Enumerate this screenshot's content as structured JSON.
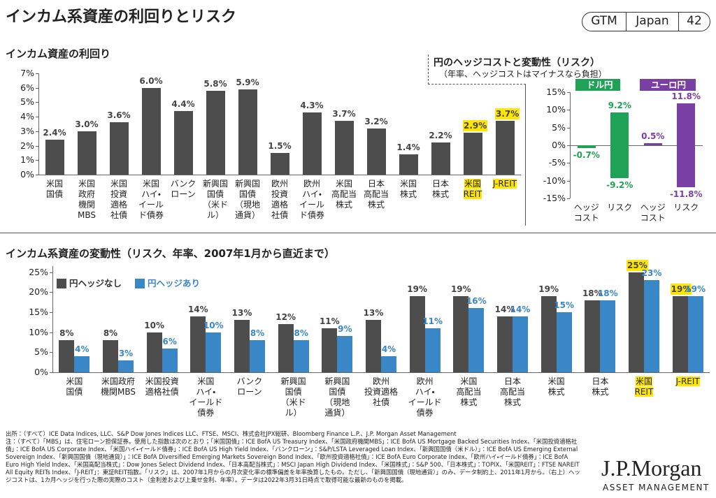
{
  "header": {
    "title": "インカム系資産の利回りとリスク",
    "badge": [
      "GTM",
      "Japan",
      "42"
    ]
  },
  "chart_data": [
    {
      "type": "bar",
      "title": "インカム資産の利回り",
      "categories": [
        "米国\n国債",
        "米国\n政府\n機関\nMBS",
        "米国\n投資\n適格\n社債",
        "米国\nハイ・\nイール\nド債券",
        "バンク\nローン",
        "新興国\n国債\n（米ド\nル）",
        "新興国\n国債\n（現地\n通貨）",
        "欧州\n投資\n適格\n社債",
        "欧州\nハイ・\nイール\nド債券",
        "米国\n高配当\n株式",
        "日本\n高配当\n株式",
        "米国\n株式",
        "日本\n株式",
        "米国\nREIT",
        "J-REIT"
      ],
      "values": [
        2.4,
        3.0,
        3.6,
        6.0,
        4.4,
        5.8,
        5.9,
        1.5,
        4.3,
        3.7,
        3.2,
        1.4,
        2.2,
        2.9,
        3.7
      ],
      "value_labels": [
        "2.4%",
        "3.0%",
        "3.6%",
        "6.0%",
        "4.4%",
        "5.8%",
        "5.9%",
        "1.5%",
        "4.3%",
        "3.7%",
        "3.2%",
        "1.4%",
        "2.2%",
        "2.9%",
        "3.7%"
      ],
      "color": "#4d4d4d",
      "highlight": [
        13,
        14
      ],
      "ylim": [
        0,
        7
      ],
      "yticks": [
        {
          "value": 0,
          "label": "0%"
        },
        {
          "value": 1,
          "label": "1%"
        },
        {
          "value": 2,
          "label": "2%"
        },
        {
          "value": 3,
          "label": "3%"
        },
        {
          "value": 4,
          "label": "4%"
        },
        {
          "value": 5,
          "label": "5%"
        },
        {
          "value": 6,
          "label": "6%"
        },
        {
          "value": 7,
          "label": "7%"
        }
      ]
    },
    {
      "type": "floating_bar",
      "title": "円のヘッジコストと変動性（リスク）",
      "subtitle": "（年率、ヘッジコストはマイナスなら負担）",
      "categories": [
        "ヘッジ\nコスト",
        "リスク",
        "ヘッジ\nコスト",
        "リスク"
      ],
      "series": [
        {
          "name": "ドル円",
          "color": "#1ea256",
          "values": [
            -0.7,
            9.2,
            null,
            null
          ],
          "value_labels": [
            "-0.7%",
            "9.2%",
            null,
            null
          ],
          "base": [
            0,
            -9.2,
            null,
            null
          ],
          "base_labels": [
            null,
            "-9.2%",
            null,
            null
          ]
        },
        {
          "name": "ユーロ円",
          "color": "#7a3fa3",
          "values": [
            null,
            null,
            0.5,
            11.8
          ],
          "value_labels": [
            null,
            null,
            "0.5%",
            "11.8%"
          ],
          "base": [
            null,
            null,
            0,
            -11.8
          ],
          "base_labels": [
            null,
            null,
            null,
            "-11.8%"
          ]
        }
      ],
      "ylim": [
        -15,
        15
      ],
      "yticks": [
        {
          "value": -15,
          "label": "-15%"
        },
        {
          "value": -10,
          "label": "-10%"
        },
        {
          "value": -5,
          "label": "-5%"
        },
        {
          "value": 0,
          "label": "0%"
        },
        {
          "value": 5,
          "label": "5%"
        },
        {
          "value": 10,
          "label": "10%"
        },
        {
          "value": 15,
          "label": "15%"
        }
      ]
    },
    {
      "type": "grouped_bar",
      "title": "インカム系資産の変動性（リスク、年率、2007年1月から直近まで）",
      "categories": [
        "米国\n国債",
        "米国政府\n機関MBS",
        "米国投資\n適格社債",
        "米国\nハイ・\nイールド\n債券",
        "バンク\nローン",
        "新興国\n国債\n（米ド\nル）",
        "新興国\n国債\n（現地\n通貨）",
        "欧州\n投資適格\n社債",
        "欧州\nハイ・\nイールド\n債券",
        "米国\n高配当\n株式",
        "日本\n高配当\n株式",
        "米国\n株式",
        "日本\n株式",
        "米国\nREIT",
        "J-REIT"
      ],
      "series": [
        {
          "name": "円ヘッジなし",
          "color": "#4d4d4d",
          "values": [
            8,
            8,
            10,
            14,
            13,
            12,
            11,
            13,
            19,
            19,
            14,
            19,
            18,
            25,
            19
          ],
          "value_labels": [
            "8%",
            "8%",
            "10%",
            "14%",
            "13%",
            "12%",
            "11%",
            "13%",
            "19%",
            "19%",
            "14%",
            "19%",
            "18%",
            "25%",
            "19%"
          ]
        },
        {
          "name": "円ヘッジあり",
          "color": "#3a87c8",
          "values": [
            4,
            3,
            6,
            10,
            8,
            8,
            9,
            4,
            11,
            16,
            14,
            15,
            18,
            23,
            19
          ],
          "value_labels": [
            "4%",
            "3%",
            "6%",
            "10%",
            "8%",
            "8%",
            "9%",
            "4%",
            "11%",
            "16%",
            "14%",
            "15%",
            "18%",
            "23%",
            "19%"
          ]
        }
      ],
      "highlight": [
        13,
        14
      ],
      "ylim": [
        0,
        26.5
      ],
      "yticks": [
        {
          "value": 0,
          "label": "0%"
        },
        {
          "value": 5,
          "label": "5%"
        },
        {
          "value": 10,
          "label": "10%"
        },
        {
          "value": 15,
          "label": "15%"
        },
        {
          "value": 20,
          "label": "20%"
        },
        {
          "value": 25,
          "label": "25%"
        }
      ]
    }
  ],
  "footer": {
    "source": "出所：（すべて）ICE Data Indices, LLC、S&P Dow Jones Indices LLC、FTSE、MSCI、株式会社JPX総研、Bloomberg Finance L.P.、J.P. Morgan Asset Management",
    "notes": "注：（すべて）「MBS」は、住宅ローン担保証券。使用した指数は次のとおり；「米国国債」：ICE BofA US Treasury Index、「米国政府機関MBS」：ICE BofA US Mortgage Backed Securities Index、「米国投資適格社債」：ICE BofA US Corporate Index、「米国ハイ・イールド債券」：ICE BofA US High Yield Index、「バンクローン」：S&P/LSTA Leveraged Loan Index、「新興国国債（米ドル）」：ICE BofA US Emerging External Sovereign Index、「新興国国債（現地通貨）」：ICE BofA Diversified Emerging Markets Sovereign Bond Index、「欧州投資適格社債」：ICE BofA Euro Corporate Index、「欧州ハイ・イールド債券」：ICE BofA Euro High Yield Index、「米国高配当株式」：Dow Jones Select Dividend Index、「日本高配当株式」：MSCI Japan High Dividend Index、「米国株式」：S&P 500、「日本株式」：TOPIX、「米国REIT」：FTSE NAREIT All Equity REITs Index、「J-REIT」：東証REIT指数。「リスク」は、2007年1月からの月次変化率の標準偏差を年率換算したもの。ただし、「新興国国債（現地通貨）」のみ、データ制約上、2011年1月から。（右上）ヘッジコストは、1カ月ヘッジを行った際の実際のコスト（金利差および上乗せ金利、年率）。データは2022年3月31日時点で取得可能な最新のものを掲載。",
    "logo": "J.P.Morgan",
    "logo_sub": "ASSET MANAGEMENT"
  }
}
